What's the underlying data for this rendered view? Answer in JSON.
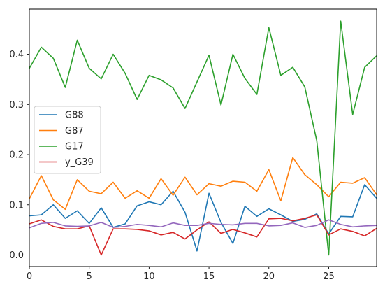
{
  "chart_data": {
    "type": "line",
    "title": "",
    "xlabel": "",
    "ylabel": "",
    "xlim": [
      0,
      29
    ],
    "ylim": [
      -0.023,
      0.49
    ],
    "xticks": [
      0,
      5,
      10,
      15,
      20,
      25
    ],
    "yticks": [
      0.0,
      0.1,
      0.2,
      0.3,
      0.4
    ],
    "grid": false,
    "legend_position": "center-left",
    "x": [
      0,
      1,
      2,
      3,
      4,
      5,
      6,
      7,
      8,
      9,
      10,
      11,
      12,
      13,
      14,
      15,
      16,
      17,
      18,
      19,
      20,
      21,
      22,
      23,
      24,
      25,
      26,
      27,
      28,
      29
    ],
    "series": [
      {
        "name": "G88",
        "color": "#1f77b4",
        "values": [
          0.078,
          0.08,
          0.1,
          0.073,
          0.088,
          0.063,
          0.094,
          0.055,
          0.062,
          0.098,
          0.106,
          0.1,
          0.127,
          0.085,
          0.008,
          0.123,
          0.065,
          0.023,
          0.097,
          0.077,
          0.092,
          0.08,
          0.067,
          0.071,
          0.082,
          0.042,
          0.077,
          0.076,
          0.14,
          0.113
        ]
      },
      {
        "name": "G87",
        "color": "#ff7f0e",
        "values": [
          0.112,
          0.158,
          0.11,
          0.091,
          0.15,
          0.127,
          0.122,
          0.145,
          0.113,
          0.128,
          0.113,
          0.152,
          0.119,
          0.155,
          0.12,
          0.142,
          0.137,
          0.147,
          0.145,
          0.127,
          0.17,
          0.108,
          0.194,
          0.16,
          0.14,
          0.116,
          0.145,
          0.143,
          0.154,
          0.12
        ]
      },
      {
        "name": "G17",
        "color": "#2ca02c",
        "values": [
          0.372,
          0.414,
          0.392,
          0.334,
          0.428,
          0.372,
          0.351,
          0.4,
          0.362,
          0.31,
          0.358,
          0.349,
          0.333,
          0.292,
          0.345,
          0.398,
          0.299,
          0.4,
          0.352,
          0.32,
          0.453,
          0.358,
          0.374,
          0.335,
          0.228,
          0.0,
          0.466,
          0.28,
          0.374,
          0.397
        ]
      },
      {
        "name": "y_G39",
        "color": "#d62728",
        "values": [
          0.062,
          0.07,
          0.057,
          0.052,
          0.052,
          0.058,
          0.0,
          0.052,
          0.052,
          0.051,
          0.048,
          0.04,
          0.045,
          0.032,
          0.05,
          0.066,
          0.043,
          0.051,
          0.044,
          0.036,
          0.072,
          0.073,
          0.068,
          0.073,
          0.08,
          0.04,
          0.052,
          0.047,
          0.038,
          0.053
        ]
      },
      {
        "name": "",
        "color": "#9467bd",
        "values": [
          0.054,
          0.063,
          0.065,
          0.058,
          0.057,
          0.058,
          0.065,
          0.055,
          0.057,
          0.061,
          0.059,
          0.056,
          0.064,
          0.059,
          0.059,
          0.063,
          0.061,
          0.06,
          0.063,
          0.063,
          0.058,
          0.059,
          0.064,
          0.055,
          0.059,
          0.07,
          0.061,
          0.056,
          0.058,
          0.059
        ]
      }
    ]
  }
}
